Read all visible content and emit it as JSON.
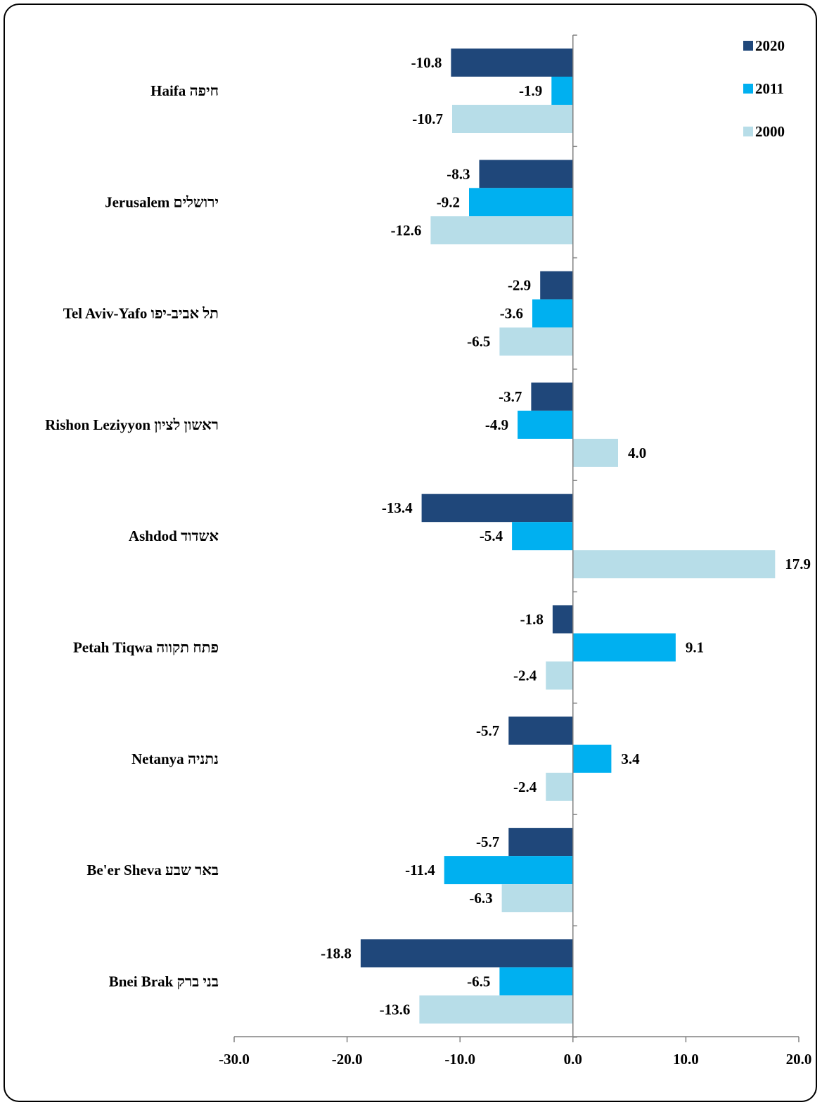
{
  "chart_data": {
    "type": "bar",
    "orientation": "horizontal",
    "categories": [
      "Haifa חיפה",
      "Jerusalem ירושלים",
      "Tel Aviv-Yafo תל אביב-יפו",
      "Rishon Leziyyon ראשון לציון",
      "Ashdod אשדוד",
      "Petah Tiqwa פתח תקווה",
      "Netanya נתניה",
      "Be'er Sheva באר שבע",
      "Bnei Brak בני ברק"
    ],
    "series": [
      {
        "name": "2020",
        "color": "#1f477a",
        "values": [
          -10.8,
          -8.3,
          -2.9,
          -3.7,
          -13.4,
          -1.8,
          -5.7,
          -5.7,
          -18.8
        ]
      },
      {
        "name": "2011",
        "color": "#00b0f0",
        "values": [
          -1.9,
          -9.2,
          -3.6,
          -4.9,
          -5.4,
          9.1,
          3.4,
          -11.4,
          -6.5
        ]
      },
      {
        "name": "2000",
        "color": "#b7dde8",
        "values": [
          -10.7,
          -12.6,
          -6.5,
          4.0,
          17.9,
          -2.4,
          -2.4,
          -6.3,
          -13.6
        ]
      }
    ],
    "xlim": [
      -30,
      20
    ],
    "xticks": [
      -30,
      -20,
      -10,
      0,
      10,
      20
    ],
    "tick_labels": [
      "-30.0",
      "-20.0",
      "-10.0",
      "0.0",
      "10.0",
      "20.0"
    ],
    "value_decimals": 1,
    "legend_position": "top-right",
    "grid": false,
    "title": "",
    "xlabel": "",
    "ylabel": ""
  }
}
